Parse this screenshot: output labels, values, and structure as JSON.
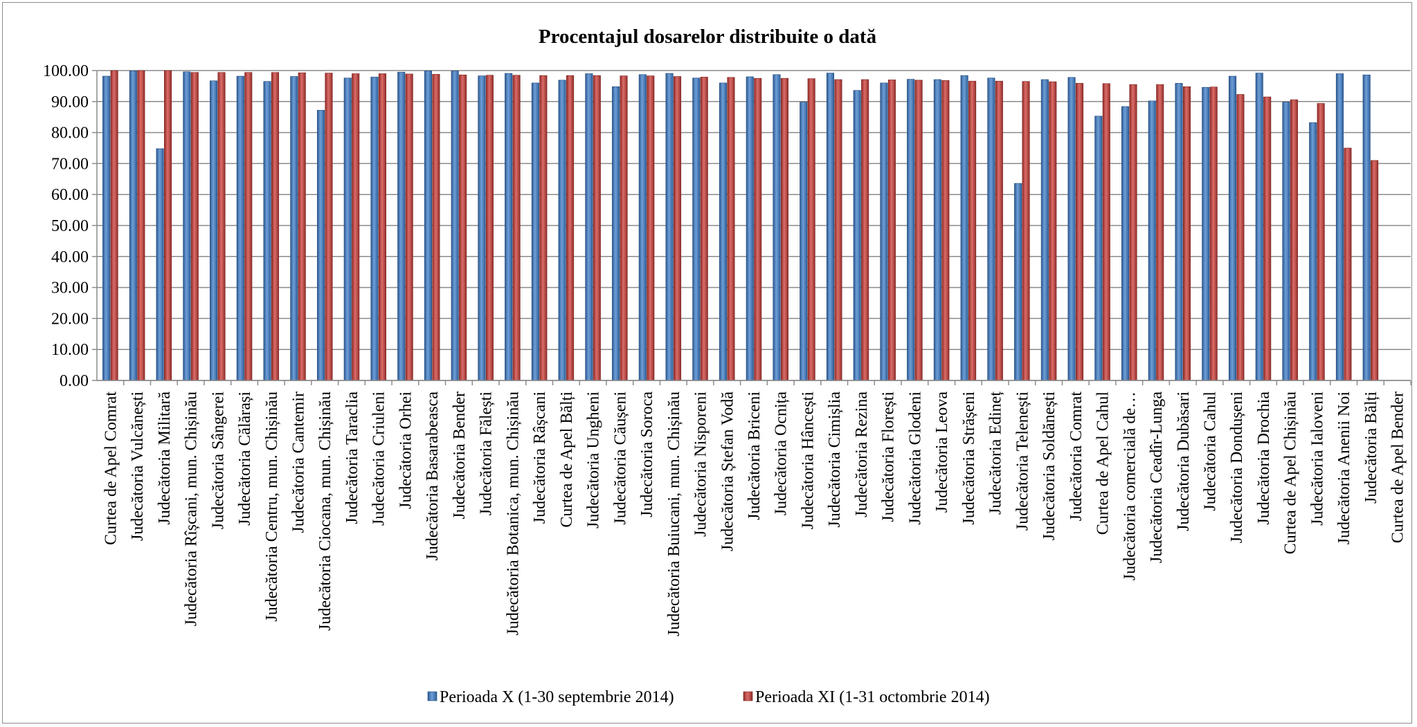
{
  "chart_data": {
    "type": "bar",
    "title": "Procentajul dosarelor distribuite o dată",
    "xlabel": "",
    "ylabel": "",
    "ylim": [
      0,
      100
    ],
    "yticks": [
      "0.00",
      "10.00",
      "20.00",
      "30.00",
      "40.00",
      "50.00",
      "60.00",
      "70.00",
      "80.00",
      "90.00",
      "100.00"
    ],
    "grid": true,
    "legend_position": "bottom",
    "categories": [
      "Curtea de Apel Comrat",
      "Judecătoria Vulcănești",
      "Judecătoria Militară",
      "Judecătoria Rîșcani, mun. Chișinău",
      "Judecătoria Sângerei",
      "Judecătoria Călărași",
      "Judecătoria Centru, mun. Chișinău",
      "Judecătoria Cantemir",
      "Judecătoria Ciocana, mun. Chișinău",
      "Judecătoria Taraclia",
      "Judecătoria Criuleni",
      "Judecătoria Orhei",
      "Judecătoria Basarabeasca",
      "Judecătoria Bender",
      "Judecătoria Fălești",
      "Judecătoria Botanica, mun. Chișinău",
      "Judecătoria Râșcani",
      "Curtea de Apel Bălți",
      "Judecătoria Ungheni",
      "Judecătoria Căușeni",
      "Judecătoria Soroca",
      "Judecătoria Buiucani, mun. Chișinău",
      "Judecătoria Nisporeni",
      "Judecătoria Ștefan Vodă",
      "Judecătoria Briceni",
      "Judecătoria Ocnița",
      "Judecătoria Hâncești",
      "Judecătoria Cimișlia",
      "Judecătoria Rezina",
      "Judecătoria Florești",
      "Judecătoria Glodeni",
      "Judecătoria Leova",
      "Judecătoria Strășeni",
      "Judecătoria Edineț",
      "Judecătoria Telenești",
      "Judecătoria Soldănești",
      "Judecătoria Comrat",
      "Curtea de Apel Cahul",
      "Judecătoria comercială de…",
      "Judecătoria Ceadîr-Lunga",
      "Judecătoria Dubăsari",
      "Judecătoria Cahul",
      "Judecătoria Dondușeni",
      "Judecătoria Drochia",
      "Curtea de Apel Chișinău",
      "Judecătoria Ialoveni",
      "Judecătoria Anenii Noi",
      "Judecătoria Bălți",
      "Curtea de Apel Bender"
    ],
    "series": [
      {
        "name": "Perioada X (1-30 septembrie 2014)",
        "color": "#4f81bd",
        "values": [
          98.2,
          99.9,
          74.8,
          99.6,
          96.7,
          98.2,
          96.5,
          98.1,
          87.2,
          97.6,
          97.9,
          99.5,
          99.9,
          99.9,
          98.3,
          99.1,
          96.0,
          96.9,
          99.0,
          94.8,
          98.7,
          99.1,
          97.6,
          96.0,
          98.0,
          98.7,
          89.8,
          99.2,
          93.6,
          96.0,
          97.2,
          97.1,
          98.4,
          97.6,
          63.6,
          97.1,
          97.8,
          85.3,
          88.4,
          90.2,
          95.9,
          94.6,
          98.2,
          99.2,
          89.8,
          83.2,
          99.0,
          98.6,
          0
        ]
      },
      {
        "name": "Perioada XI (1-31 octombrie 2014)",
        "color": "#c0504d",
        "values": [
          100.0,
          100.0,
          100.0,
          99.4,
          99.4,
          99.4,
          99.4,
          99.3,
          99.2,
          99.0,
          99.0,
          98.9,
          98.8,
          98.6,
          98.5,
          98.5,
          98.4,
          98.4,
          98.4,
          98.3,
          98.3,
          98.1,
          97.9,
          97.8,
          97.5,
          97.5,
          97.4,
          97.1,
          97.1,
          97.0,
          96.9,
          96.8,
          96.6,
          96.6,
          96.5,
          96.4,
          95.9,
          95.8,
          95.5,
          95.5,
          94.8,
          94.7,
          92.3,
          91.5,
          90.6,
          89.4,
          75.0,
          71.0,
          0
        ]
      }
    ]
  }
}
